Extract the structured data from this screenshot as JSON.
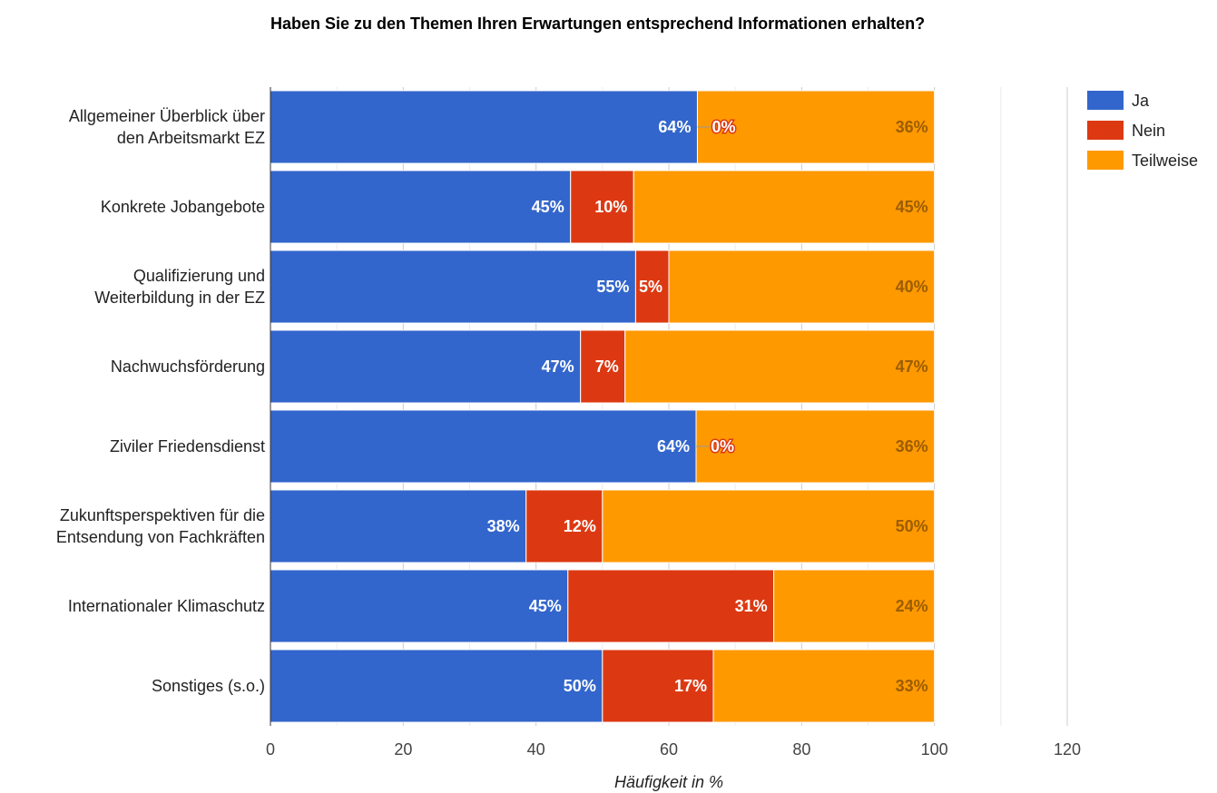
{
  "chart_data": {
    "type": "bar",
    "orientation": "horizontal",
    "stacked": true,
    "title": "Haben Sie zu den Themen Ihren Erwartungen entsprechend Informationen erhalten?",
    "xlabel": "Häufigkeit in %",
    "ylabel": "",
    "xlim": [
      0,
      120
    ],
    "xticks": [
      0,
      20,
      40,
      60,
      80,
      100,
      120
    ],
    "grid": true,
    "legend_position": "right",
    "categories": [
      "Allgemeiner Überblick über den Arbeitsmarkt EZ",
      "Konkrete Jobangebote",
      "Qualifizierung und Weiterbildung in der EZ",
      "Nachwuchsförderung",
      "Ziviler Friedensdienst",
      "Zukunftsperspektiven für die Entsendung von Fachkräften",
      "Internationaler Klimaschutz",
      "Sonstiges (s.o.)"
    ],
    "category_lines": [
      [
        "Allgemeiner Überblick über",
        "den Arbeitsmarkt EZ"
      ],
      [
        "Konkrete Jobangebote"
      ],
      [
        "Qualifizierung und",
        "Weiterbildung in der EZ"
      ],
      [
        "Nachwuchsförderung"
      ],
      [
        "Ziviler Friedensdienst"
      ],
      [
        "Zukunftsperspektiven für die",
        "Entsendung von Fachkräften"
      ],
      [
        "Internationaler Klimaschutz"
      ],
      [
        "Sonstiges (s.o.)"
      ]
    ],
    "series": [
      {
        "name": "Ja",
        "color": "#3366cc",
        "values": [
          64.3,
          45.2,
          55.0,
          46.7,
          64.1,
          38.5,
          44.8,
          50.0
        ],
        "labels": [
          "64%",
          "45%",
          "55%",
          "47%",
          "64%",
          "38%",
          "45%",
          "50%"
        ]
      },
      {
        "name": "Nein",
        "color": "#dc3912",
        "values": [
          0,
          9.5,
          5.0,
          6.7,
          0,
          11.5,
          31.0,
          16.7
        ],
        "labels": [
          "0%",
          "10%",
          "5%",
          "7%",
          "0%",
          "12%",
          "31%",
          "17%"
        ]
      },
      {
        "name": "Teilweise",
        "color": "#ff9900",
        "values": [
          35.7,
          45.3,
          40.0,
          46.6,
          35.9,
          50.0,
          24.2,
          33.3
        ],
        "labels": [
          "36%",
          "45%",
          "40%",
          "47%",
          "36%",
          "50%",
          "24%",
          "33%"
        ]
      }
    ]
  }
}
